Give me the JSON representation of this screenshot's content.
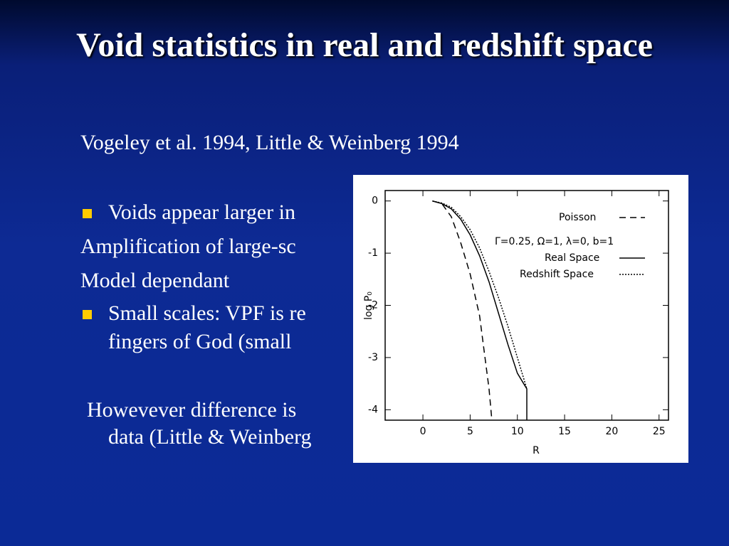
{
  "slide": {
    "title": "Void statistics in real and redshift space",
    "subtitle": "Vogeley et al. 1994, Little & Weinberg 1994",
    "lines": [
      "Voids appear larger in",
      "Amplification of large-sc",
      "Model dependant",
      "Small scales: VPF is re",
      "fingers of God (small",
      "Howevever difference is",
      "data (Little & Weinberg"
    ]
  },
  "chart_data": {
    "type": "line",
    "x_label": "R",
    "y_label": "log P₀",
    "annotation": "Γ=0.25, Ω=1, λ=0, b=1",
    "xlim": [
      -4,
      26
    ],
    "ylim": [
      -4.2,
      0.2
    ],
    "xticks": [
      0,
      5,
      10,
      15,
      20,
      25
    ],
    "yticks": [
      0,
      -1,
      -2,
      -3,
      -4
    ],
    "series": [
      {
        "name": "Poisson",
        "color": "#000000",
        "dash": "dashed",
        "x": [
          1,
          2,
          3,
          4,
          5,
          6,
          7,
          7.3
        ],
        "values": [
          0,
          -0.05,
          -0.3,
          -0.8,
          -1.4,
          -2.2,
          -3.6,
          -4.2
        ]
      },
      {
        "name": "Real Space",
        "color": "#000000",
        "dash": "solid",
        "x": [
          1,
          2,
          3,
          4,
          5,
          6,
          7,
          8,
          9,
          10,
          11,
          11
        ],
        "values": [
          0,
          -0.05,
          -0.15,
          -0.35,
          -0.65,
          -1.05,
          -1.55,
          -2.15,
          -2.75,
          -3.3,
          -3.6,
          -4.2
        ]
      },
      {
        "name": "Redshift Space",
        "color": "#000000",
        "dash": "dotted",
        "x": [
          1,
          2,
          3,
          4,
          5,
          6,
          7,
          8,
          9,
          10,
          11
        ],
        "values": [
          0,
          -0.04,
          -0.12,
          -0.3,
          -0.55,
          -0.9,
          -1.35,
          -1.85,
          -2.4,
          -3.0,
          -3.6
        ]
      }
    ]
  }
}
